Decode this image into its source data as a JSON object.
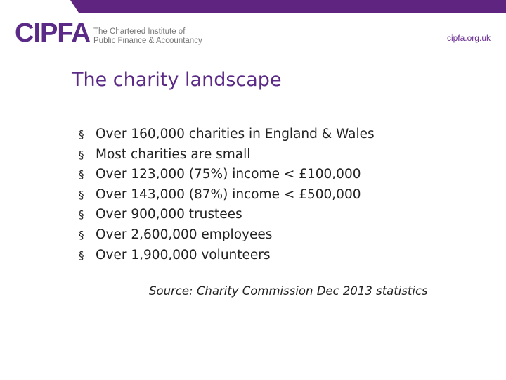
{
  "header": {
    "logo": "CIPFA",
    "org_name": [
      "The Chartered Institute of",
      "Public Finance & Accountancy"
    ],
    "url": "cipfa.org.uk"
  },
  "title": "The charity landscape",
  "bullets": [
    "Over 160,000 charities in England & Wales",
    "Most charities are small",
    "Over 123,000 (75%) income < £100,000",
    "Over 143,000 (87%) income < £500,000",
    "Over 900,000 trustees",
    "Over 2,600,000 employees",
    "Over 1,900,000 volunteers"
  ],
  "source": "Source: Charity Commission Dec 2013 statistics"
}
